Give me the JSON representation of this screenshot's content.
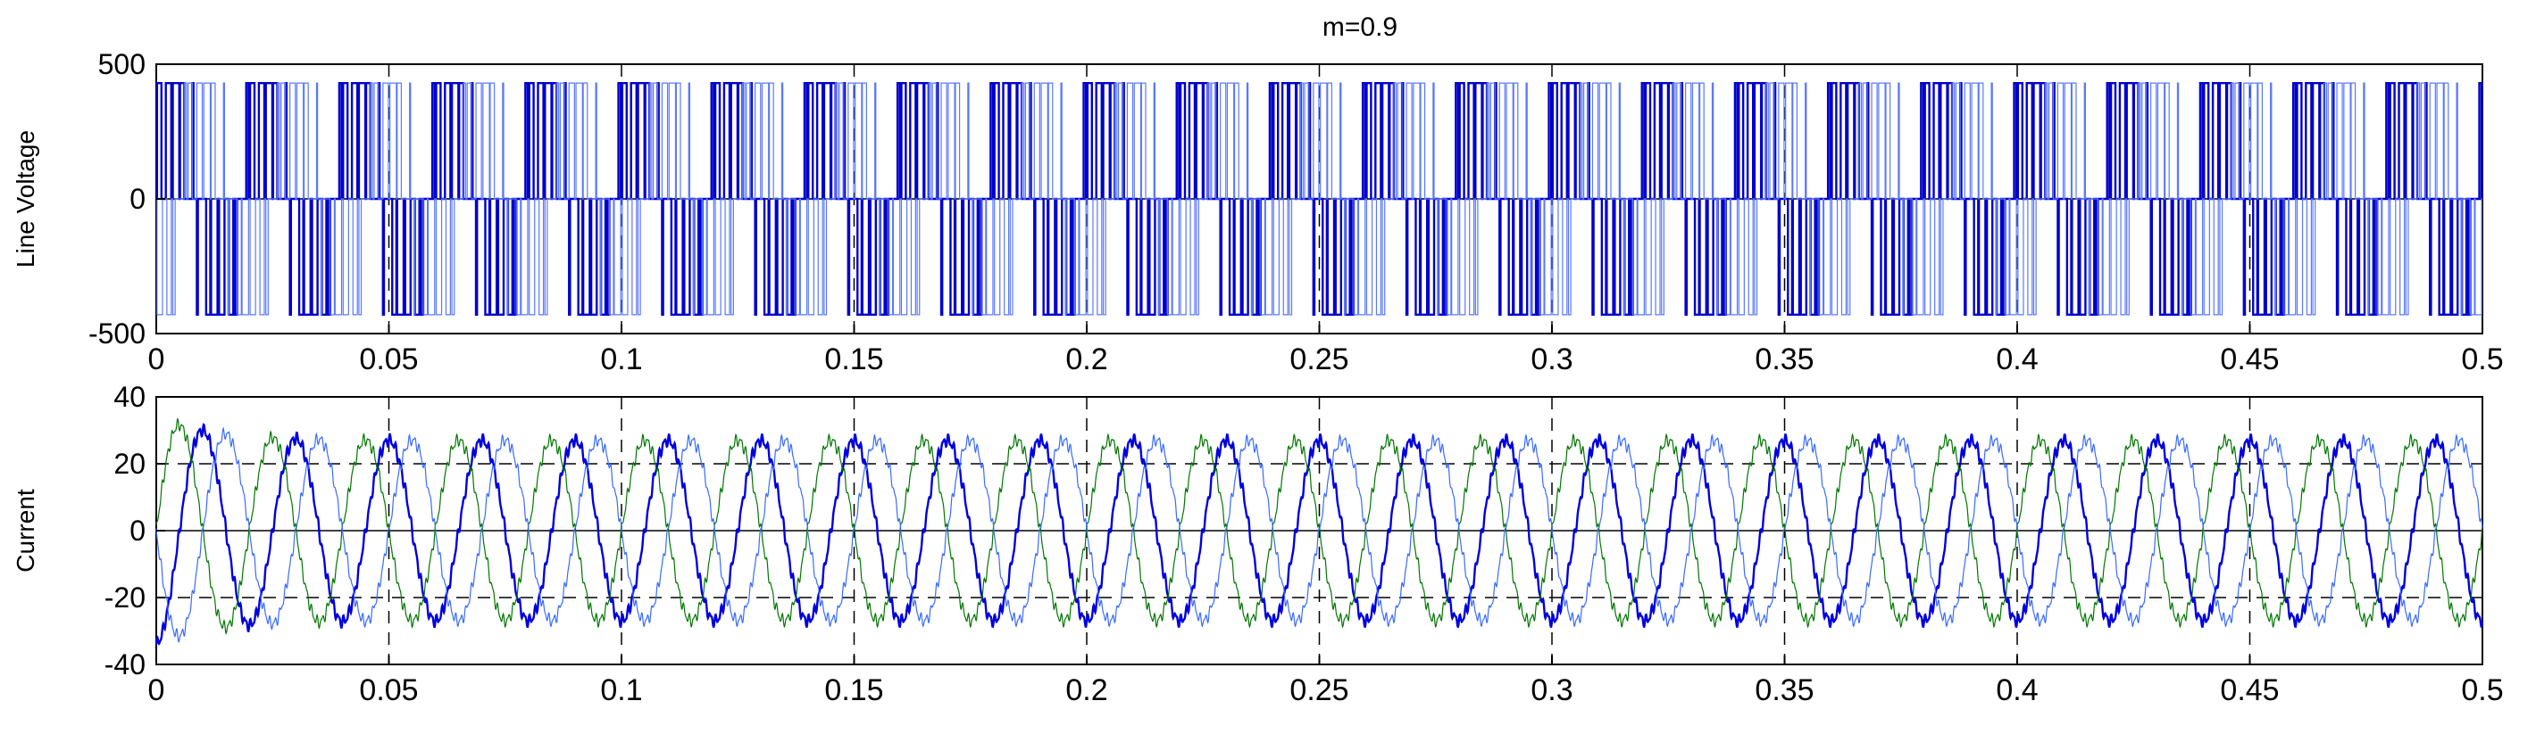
{
  "figure": {
    "title": "m=0.9"
  },
  "chart_data": [
    {
      "type": "line",
      "title": "m=0.9",
      "xlabel": "",
      "ylabel": "Line Voltage",
      "xlim": [
        0,
        0.5
      ],
      "ylim": [
        -500,
        500
      ],
      "x_ticks": [
        0,
        0.05,
        0.1,
        0.15,
        0.2,
        0.25,
        0.3,
        0.35,
        0.4,
        0.45,
        0.5
      ],
      "x_tick_labels": [
        "0",
        "0.05",
        "0.1",
        "0.15",
        "0.2",
        "0.25",
        "0.3",
        "0.35",
        "0.4",
        "0.45",
        "0.5"
      ],
      "y_ticks": [
        -500,
        0,
        500
      ],
      "y_tick_labels": [
        "-500",
        "0",
        "500"
      ],
      "grid": "dashed vertical at x ticks",
      "waveform": {
        "kind": "pwm_line_voltage",
        "fundamental_frequency_hz": 50,
        "carrier_frequency_hz": 300,
        "modulation_index": 0.9,
        "amplitude": 430
      },
      "series": [
        {
          "color": "#0000cc",
          "line_width": "thick",
          "phase_shift_deg": 0
        },
        {
          "color": "#5a78ff",
          "line_width": "thin",
          "phase_shift_deg": -120
        }
      ]
    },
    {
      "type": "line",
      "xlabel": "",
      "ylabel": "Current",
      "xlim": [
        0,
        0.5
      ],
      "ylim": [
        -40,
        40
      ],
      "x_ticks": [
        0,
        0.05,
        0.1,
        0.15,
        0.2,
        0.25,
        0.3,
        0.35,
        0.4,
        0.45,
        0.5
      ],
      "x_tick_labels": [
        "0",
        "0.05",
        "0.1",
        "0.15",
        "0.2",
        "0.25",
        "0.3",
        "0.35",
        "0.4",
        "0.45",
        "0.5"
      ],
      "y_ticks": [
        -40,
        -20,
        0,
        20,
        40
      ],
      "y_tick_labels": [
        "-40",
        "-20",
        "0",
        "20",
        "40"
      ],
      "grid": "dashed horizontal at y=20 and y=-20; dashed vertical at x ticks",
      "waveform": {
        "kind": "sinusoidal_current_with_ripple",
        "fundamental_frequency_hz": 50,
        "amplitude": 27,
        "startup_peak": 34
      },
      "series": [
        {
          "color": "#0000dd",
          "line_width": "thick",
          "phase_shift_deg": -90
        },
        {
          "color": "#007700",
          "line_width": "thin",
          "phase_shift_deg": 0
        },
        {
          "color": "#3a6bff",
          "line_width": "thin",
          "phase_shift_deg": -180
        }
      ]
    }
  ]
}
